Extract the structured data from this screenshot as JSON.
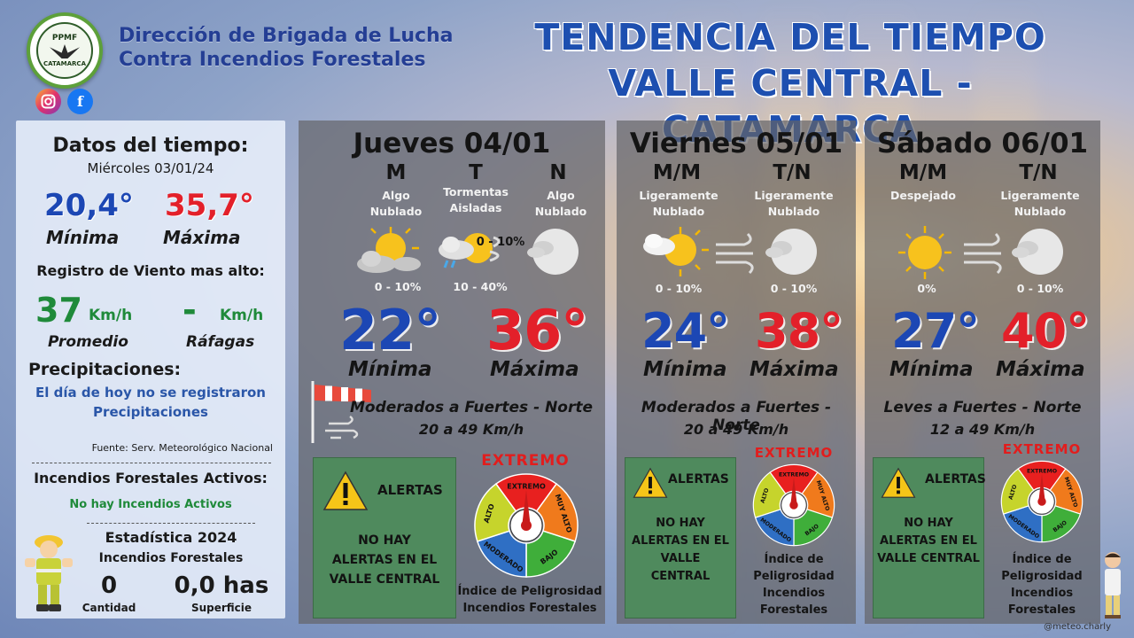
{
  "header": {
    "org_line1": "Dirección de Brigada de Lucha",
    "org_line2": "Contra Incendios Forestales",
    "logo_text": "PPMF",
    "logo_place": "CATAMARCA",
    "title_line1": "TENDENCIA DEL TIEMPO",
    "title_line2": "VALLE CENTRAL - CATAMARCA",
    "social": [
      "instagram-icon",
      "facebook-icon"
    ]
  },
  "today": {
    "title": "Datos del tiempo:",
    "date": "Miércoles 03/01/24",
    "min": "20,4°",
    "min_label": "Mínima",
    "max": "35,7°",
    "max_label": "Máxima",
    "wind_title": "Registro de Viento mas alto:",
    "wind_avg": "37",
    "wind_avg_unit": "Km/h",
    "wind_avg_label": "Promedio",
    "wind_gust": "-",
    "wind_gust_unit": "Km/h",
    "wind_gust_label": "Ráfagas",
    "prec_title": "Precipitaciones:",
    "prec_line1": "El día de hoy no se registraron",
    "prec_line2": "Precipitaciones",
    "source": "Fuente: Serv. Meteorológico Nacional",
    "fires_title": "Incendios Forestales Activos:",
    "fires_text": "No hay Incendios Activos",
    "stats_title": "Estadística 2024",
    "stats_sub": "Incendios Forestales",
    "count": "0",
    "count_label": "Cantidad",
    "area": "0,0 has",
    "area_label": "Superficie"
  },
  "days": [
    {
      "title": "Jueves 04/01",
      "periods": [
        {
          "label": "M",
          "cond": [
            "Algo",
            "Nublado"
          ],
          "pct": "0 - 10%",
          "icon": "partly-cloudy-icon"
        },
        {
          "label": "T",
          "cond": [
            "Tormentas",
            "Aisladas"
          ],
          "pct": "10 - 40%",
          "icon": "storm-icon",
          "overlay": "0 - 10%"
        },
        {
          "label": "N",
          "cond": [
            "Algo",
            "Nublado"
          ],
          "pct": "",
          "icon": "cloudy-moon-icon"
        }
      ],
      "min": "22°",
      "min_label": "Mínima",
      "max": "36°",
      "max_label": "Máxima",
      "wind_text": "Moderados a Fuertes - Norte",
      "wind_speed": "20 a 49 Km/h",
      "alert_title": "ALERTAS",
      "alert_text": [
        "NO HAY",
        "ALERTAS EN EL",
        "VALLE CENTRAL"
      ],
      "danger_level": "EXTREMO",
      "danger_label": [
        "Índice de Peligrosidad",
        "Incendios Forestales"
      ]
    },
    {
      "title": "Viernes 05/01",
      "periods": [
        {
          "label": "M/M",
          "cond": [
            "Ligeramente",
            "Nublado"
          ],
          "pct": "0 - 10%",
          "icon": "partly-cloudy-icon"
        },
        {
          "label": "T/N",
          "cond": [
            "Ligeramente",
            "Nublado"
          ],
          "pct": "0 - 10%",
          "icon": "cloudy-moon-icon"
        }
      ],
      "min": "24°",
      "min_label": "Mínima",
      "max": "38°",
      "max_label": "Máxima",
      "wind_text": "Moderados a Fuertes - Norte",
      "wind_speed": "20 a 49 Km/h",
      "alert_title": "ALERTAS",
      "alert_text": [
        "NO HAY",
        "ALERTAS EN EL",
        "VALLE",
        "CENTRAL"
      ],
      "danger_level": "EXTREMO",
      "danger_label": [
        "Índice de",
        "Peligrosidad",
        "Incendios",
        "Forestales"
      ]
    },
    {
      "title": "Sábado 06/01",
      "periods": [
        {
          "label": "M/M",
          "cond": [
            "Despejado"
          ],
          "pct": "0%",
          "icon": "sun-icon"
        },
        {
          "label": "T/N",
          "cond": [
            "Ligeramente",
            "Nublado"
          ],
          "pct": "0 - 10%",
          "icon": "cloudy-moon-icon"
        }
      ],
      "min": "27°",
      "min_label": "Mínima",
      "max": "40°",
      "max_label": "Máxima",
      "wind_text": "Leves a Fuertes - Norte",
      "wind_speed": "12 a 49 Km/h",
      "alert_title": "ALERTAS",
      "alert_text": [
        "NO HAY",
        "ALERTAS EN EL",
        "VALLE CENTRAL"
      ],
      "danger_level": "EXTREMO",
      "danger_label": [
        "Índice de",
        "Peligrosidad",
        "Incendios",
        "Forestales"
      ]
    }
  ],
  "gauge_labels": [
    "EXTREMO",
    "MUY ALTO",
    "BAJO",
    "MODERADO",
    "ALTO"
  ],
  "colors": {
    "blue": "#1c47b4",
    "red": "#e3202a",
    "green": "#1f8a3a"
  },
  "credit": "@meteo.charly"
}
